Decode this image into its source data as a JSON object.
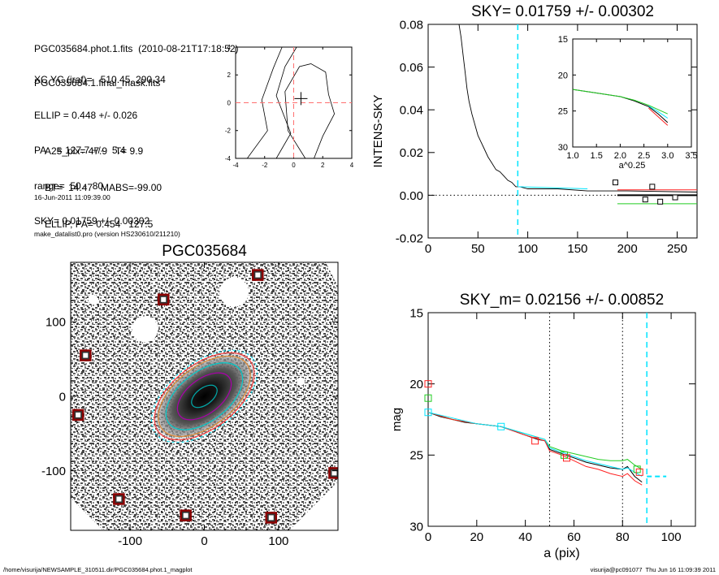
{
  "header": {
    "lines1": [
      "PGC035684.phot.1.fits  (2010-08-21T17:18:52)",
      "PGC035684.1.final_mask.fits"
    ],
    "lines2": [
      "XC,YC (iraf)=   510.45, 290.34",
      "ELLIP = 0.448 +/- 0.026",
      "PA    = 127.7 +/-   5.4",
      "range=  50.-  80.",
      "SKY= 0.01759 +/- 0.00302"
    ],
    "lines3": [
      "A25_pix= 47.9   T= 9.9",
      "BT=  14.47   MABS=-99.00",
      "ELLIP, PA= 0.454   127.5"
    ],
    "lines4": [
      "16-Jun-2011 11:09:39.00",
      "make_datalist0.pro (version HS230610/211210)"
    ]
  },
  "footer": {
    "left": "/home/visurija/NEWSAMPLE_310511.dir/PGC035684.phot.1_magplot",
    "right": "visurija@pc091077  Thu Jun 16 11:09:39 2011"
  },
  "colors": {
    "black": "#000000",
    "cyan": "#00e5ff",
    "red": "#ff2020",
    "green": "#22cc22",
    "pink": "#ff80b0",
    "mask_square": "#8b0000",
    "dashed_red": "#ff7070"
  },
  "chart_data": [
    {
      "id": "contour",
      "type": "contour",
      "title": "",
      "xlim": [
        -4,
        4
      ],
      "ylim": [
        -4,
        4
      ],
      "xticks": [
        -4,
        -2,
        0,
        2,
        4
      ],
      "yticks": [
        -4,
        -2,
        0,
        2,
        4
      ],
      "center_marker": [
        0.5,
        0.3
      ],
      "contours": [
        [
          [
            -3.2,
            -4
          ],
          [
            -1.8,
            -2
          ],
          [
            -2.2,
            0.2
          ],
          [
            -1.4,
            2.5
          ],
          [
            -0.8,
            4
          ]
        ],
        [
          [
            -1.2,
            -4
          ],
          [
            -0.2,
            -2.2
          ],
          [
            -1.2,
            0.5
          ],
          [
            -0.6,
            2.6
          ],
          [
            0.2,
            4
          ]
        ],
        [
          [
            0.8,
            -4
          ],
          [
            -0.4,
            -2
          ],
          [
            -0.6,
            0.8
          ],
          [
            0.4,
            2.6
          ],
          [
            1.2,
            2.8
          ],
          [
            2.2,
            2.2
          ],
          [
            2.4,
            0.6
          ],
          [
            2.8,
            -0.8
          ],
          [
            2.0,
            -2.4
          ],
          [
            1.4,
            -4
          ]
        ]
      ]
    },
    {
      "id": "sky",
      "type": "line",
      "title": "SKY= 0.01759 +/- 0.00302",
      "ylabel": "INTENS-SKY",
      "xlabel": "",
      "xlim": [
        0,
        270
      ],
      "ylim": [
        -0.02,
        0.08
      ],
      "xticks": [
        0,
        50,
        100,
        150,
        200,
        250
      ],
      "yticks": [
        -0.02,
        0.0,
        0.02,
        0.04,
        0.06,
        0.08
      ],
      "ytick_labels": [
        "-0.02",
        "0.00",
        "0.02",
        "0.04",
        "0.06",
        "0.08"
      ],
      "vline_x": 90,
      "profile": [
        [
          31,
          0.08
        ],
        [
          33,
          0.074
        ],
        [
          35,
          0.066
        ],
        [
          37,
          0.058
        ],
        [
          39,
          0.05
        ],
        [
          41,
          0.044
        ],
        [
          44,
          0.038
        ],
        [
          47,
          0.033
        ],
        [
          50,
          0.028
        ],
        [
          53,
          0.025
        ],
        [
          56,
          0.022
        ],
        [
          60,
          0.018
        ],
        [
          64,
          0.015
        ],
        [
          68,
          0.012
        ],
        [
          72,
          0.011
        ],
        [
          76,
          0.009
        ],
        [
          80,
          0.007
        ],
        [
          84,
          0.006
        ],
        [
          88,
          0.004
        ],
        [
          92,
          0.004
        ],
        [
          100,
          0.003
        ],
        [
          130,
          0.003
        ],
        [
          160,
          0.002
        ],
        [
          200,
          0.002
        ],
        [
          270,
          0.0015
        ]
      ],
      "sky_segments": [
        {
          "color": "cyan",
          "x": [
            90,
            160
          ],
          "y": [
            0.004,
            0.003
          ]
        },
        {
          "color": "red",
          "x": [
            190,
            270
          ],
          "y": [
            0.0025,
            0.0025
          ]
        },
        {
          "color": "black",
          "x": [
            190,
            270
          ],
          "y": [
            0.0,
            0.0
          ]
        },
        {
          "color": "green",
          "x": [
            190,
            270
          ],
          "y": [
            -0.004,
            -0.004
          ]
        }
      ],
      "squares": [
        [
          188,
          0.006
        ],
        [
          218,
          -0.002
        ],
        [
          225,
          0.004
        ],
        [
          233,
          -0.003
        ],
        [
          248,
          -0.001
        ]
      ],
      "inset": {
        "type": "line",
        "xlabel": "a^0.25",
        "xlim": [
          1.0,
          3.5
        ],
        "ylim": [
          15,
          30
        ],
        "y_inverted": true,
        "xticks": [
          1.0,
          1.5,
          2.0,
          2.5,
          3.0,
          3.5
        ],
        "xtick_labels": [
          "1.0",
          "1.5",
          "2.0",
          "2.5",
          "3.0",
          "3.5"
        ],
        "yticks": [
          15,
          20,
          25,
          30
        ],
        "series": [
          {
            "color": "black",
            "x": [
              1.0,
              1.5,
              2.0,
              2.3,
              2.6,
              2.8,
              3.0
            ],
            "y": [
              22.0,
              22.5,
              23.0,
              23.6,
              24.4,
              25.4,
              26.6
            ]
          },
          {
            "color": "green",
            "x": [
              1.0,
              1.5,
              2.0,
              2.3,
              2.6,
              2.8,
              3.0
            ],
            "y": [
              22.0,
              22.5,
              23.0,
              23.5,
              24.2,
              24.8,
              25.4
            ]
          },
          {
            "color": "red",
            "x": [
              2.6,
              2.8,
              3.0
            ],
            "y": [
              24.6,
              25.8,
              27.0
            ]
          },
          {
            "color": "cyan",
            "x": [
              2.6,
              2.8,
              3.0
            ],
            "y": [
              24.3,
              25.1,
              26.0
            ]
          }
        ]
      }
    },
    {
      "id": "image",
      "type": "image",
      "title": "PGC035684",
      "xlim": [
        -180,
        180
      ],
      "ylim": [
        -180,
        180
      ],
      "xticks": [
        -100,
        0,
        100
      ],
      "yticks": [
        -100,
        0,
        100
      ],
      "ellipse_pa_deg": 127.7,
      "ellipse_ellip": 0.448,
      "ellipse_semimajor": [
        20,
        42,
        60,
        72,
        78
      ],
      "masked_objects": [
        [
          -160,
          55
        ],
        [
          -170,
          -25
        ],
        [
          -115,
          -138
        ],
        [
          -25,
          -160
        ],
        [
          -55,
          130
        ],
        [
          72,
          163
        ],
        [
          90,
          -163
        ],
        [
          175,
          -103
        ]
      ]
    },
    {
      "id": "mag",
      "type": "line",
      "title": "SKY_m=  0.02156 +/- 0.00852",
      "xlabel": "a (pix)",
      "ylabel": "mag",
      "xlim": [
        0,
        110
      ],
      "ylim": [
        15,
        30
      ],
      "y_inverted": true,
      "xticks": [
        0,
        20,
        40,
        60,
        80,
        100
      ],
      "yticks": [
        15,
        20,
        25,
        30
      ],
      "vlines_dotted": [
        50,
        80
      ],
      "vline_cyan": 90,
      "sky_mag": {
        "x": [
          90,
          98
        ],
        "y": 26.5
      },
      "series": [
        {
          "color": "black",
          "x": [
            0,
            5,
            10,
            15,
            20,
            25,
            30,
            35,
            40,
            45,
            48,
            50,
            55,
            60,
            65,
            70,
            75,
            80,
            82,
            85,
            88
          ],
          "y": [
            22.0,
            22.3,
            22.5,
            22.7,
            22.8,
            22.9,
            23.0,
            23.3,
            23.6,
            23.9,
            24.0,
            24.6,
            24.9,
            25.2,
            25.5,
            25.7,
            25.9,
            26.0,
            25.8,
            26.5,
            26.9
          ]
        },
        {
          "color": "green",
          "x": [
            0,
            10,
            20,
            30,
            40,
            48,
            50,
            55,
            60,
            65,
            70,
            75,
            80,
            82,
            85,
            88
          ],
          "y": [
            22.0,
            22.5,
            22.8,
            23.0,
            23.5,
            23.9,
            24.4,
            24.7,
            24.9,
            25.1,
            25.3,
            25.4,
            25.4,
            25.3,
            25.7,
            26.0
          ]
        },
        {
          "color": "red",
          "x": [
            0,
            10,
            20,
            30,
            40,
            48,
            50,
            55,
            60,
            65,
            70,
            75,
            80,
            82,
            85,
            88
          ],
          "y": [
            22.0,
            22.5,
            22.8,
            23.0,
            23.6,
            24.0,
            24.7,
            25.0,
            25.4,
            25.8,
            26.0,
            26.3,
            26.5,
            26.3,
            26.8,
            27.1
          ]
        },
        {
          "color": "cyan",
          "x": [
            0,
            10,
            20,
            30,
            40,
            48,
            50,
            55,
            60,
            65,
            70,
            75,
            80,
            82,
            85,
            88
          ],
          "y": [
            22.0,
            22.4,
            22.8,
            23.0,
            23.5,
            23.9,
            24.5,
            24.8,
            25.1,
            25.4,
            25.6,
            25.8,
            26.0,
            25.9,
            26.2,
            26.5
          ]
        }
      ],
      "squares": [
        {
          "color": "red",
          "x": 0,
          "y": 20.0
        },
        {
          "color": "green",
          "x": 0,
          "y": 21.0
        },
        {
          "color": "cyan",
          "x": 0,
          "y": 22.0
        },
        {
          "color": "cyan",
          "x": 30,
          "y": 23.0
        },
        {
          "color": "red",
          "x": 44,
          "y": 24.0
        },
        {
          "color": "green",
          "x": 56,
          "y": 25.0
        },
        {
          "color": "red",
          "x": 57,
          "y": 25.2
        },
        {
          "color": "green",
          "x": 86,
          "y": 26.0
        },
        {
          "color": "red",
          "x": 87,
          "y": 26.2
        }
      ]
    }
  ]
}
